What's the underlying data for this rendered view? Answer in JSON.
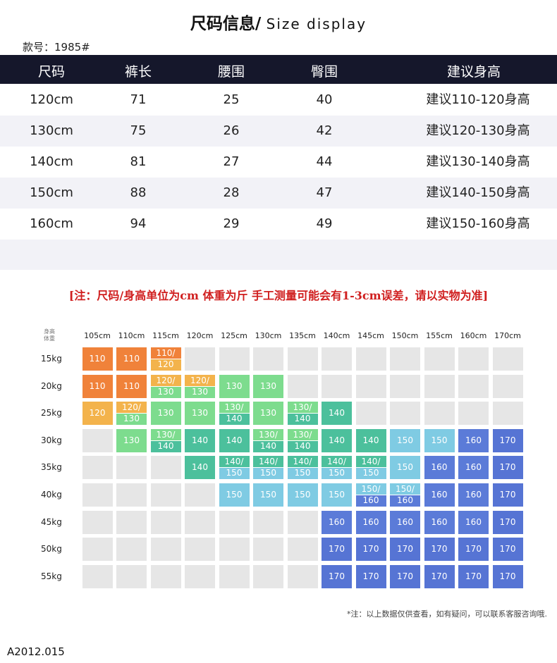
{
  "header": {
    "title_cn": "尺码信息/",
    "title_en": "Size display",
    "style_no": "款号：1985#"
  },
  "table": {
    "columns": [
      "尺码",
      "裤长",
      "腰围",
      "臀围",
      "建议身高"
    ],
    "rows": [
      [
        "120cm",
        "71",
        "25",
        "40",
        "建议110-120身高"
      ],
      [
        "130cm",
        "75",
        "26",
        "42",
        "建议120-130身高"
      ],
      [
        "140cm",
        "81",
        "27",
        "44",
        "建议130-140身高"
      ],
      [
        "150cm",
        "88",
        "28",
        "47",
        "建议140-150身高"
      ],
      [
        "160cm",
        "94",
        "29",
        "49",
        "建议150-160身高"
      ]
    ]
  },
  "note": "[注：尺码/身高单位为cm 体重为斤  手工测量可能会有1-3cm误差，请以实物为准]",
  "grid": {
    "corner_top": "身高",
    "corner_bottom": "体重",
    "heights": [
      "105cm",
      "110cm",
      "115cm",
      "120cm",
      "125cm",
      "130cm",
      "135cm",
      "140cm",
      "145cm",
      "150cm",
      "155cm",
      "160cm",
      "170cm"
    ],
    "weights": [
      "15kg",
      "20kg",
      "25kg",
      "30kg",
      "35kg",
      "40kg",
      "45kg",
      "50kg",
      "55kg"
    ],
    "cells": [
      [
        "110",
        "110",
        "110/120",
        "",
        "",
        "",
        "",
        "",
        "",
        "",
        "",
        "",
        ""
      ],
      [
        "110",
        "110",
        "120/130",
        "120/130",
        "130",
        "130",
        "",
        "",
        "",
        "",
        "",
        "",
        ""
      ],
      [
        "120",
        "120/130",
        "130",
        "130",
        "130/140",
        "130",
        "130/140",
        "140",
        "",
        "",
        "",
        "",
        ""
      ],
      [
        "",
        "130",
        "130/140",
        "140",
        "140",
        "130/140",
        "130/140",
        "140",
        "140",
        "150",
        "150",
        "160",
        "170"
      ],
      [
        "",
        "",
        "",
        "140",
        "140/150",
        "140/150",
        "140/150",
        "140/150",
        "140/150",
        "150",
        "160",
        "160",
        "170"
      ],
      [
        "",
        "",
        "",
        "",
        "150",
        "150",
        "150",
        "150",
        "150/160",
        "150/160",
        "160",
        "160",
        "170"
      ],
      [
        "",
        "",
        "",
        "",
        "",
        "",
        "",
        "160",
        "160",
        "160",
        "160",
        "160",
        "170"
      ],
      [
        "",
        "",
        "",
        "",
        "",
        "",
        "",
        "170",
        "170",
        "170",
        "170",
        "170",
        "170"
      ],
      [
        "",
        "",
        "",
        "",
        "",
        "",
        "",
        "170",
        "170",
        "170",
        "170",
        "170",
        "170"
      ]
    ],
    "colors": {
      "110": "#f0823a",
      "120": "#f3b34c",
      "130": "#7ddc8e",
      "140": "#4cc09c",
      "150": "#7fcbe3",
      "160": "#5b7bd8",
      "170": "#5674d4",
      "empty": "#e6e6e6"
    }
  },
  "footnote": "*注：以上数据仅供查看，如有疑问，可以联系客服咨询哦.",
  "code": "A2012.015"
}
